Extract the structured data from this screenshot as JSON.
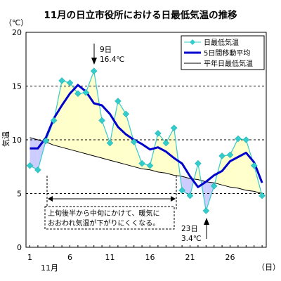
{
  "chart_data": {
    "type": "line",
    "title": "11月の日立市役所における日最低気温の推移",
    "unit_label": "（℃）",
    "ylabel": "気温",
    "x_unit": "（日）",
    "month_label": "11月",
    "xlim": [
      1,
      30
    ],
    "ylim": [
      0,
      20
    ],
    "x_ticks": [
      1,
      6,
      11,
      16,
      21,
      26
    ],
    "y_ticks": [
      0,
      5,
      10,
      15,
      20
    ],
    "legend_position": "top-right",
    "series": [
      {
        "name": "日最低気温",
        "color": "#33cccc",
        "values": [
          7.6,
          7.2,
          9.9,
          11.8,
          15.5,
          15.3,
          14.3,
          14.4,
          16.4,
          11.8,
          9.7,
          13.6,
          12.4,
          9.8,
          7.8,
          7.6,
          10.6,
          9.7,
          11.1,
          5.3,
          4.8,
          7.8,
          3.4,
          5.7,
          8.5,
          8.6,
          10.1,
          10.0,
          7.6,
          4.8
        ]
      },
      {
        "name": "5日間移動平均",
        "color": "#0000cc",
        "values": [
          9.2,
          9.2,
          10.2,
          12.0,
          13.2,
          14.3,
          15.1,
          14.5,
          13.4,
          13.2,
          12.4,
          11.2,
          10.5,
          10.0,
          9.6,
          9.1,
          9.3,
          8.9,
          8.3,
          7.8,
          6.6,
          5.6,
          6.1,
          6.7,
          7.1,
          8.0,
          8.4,
          8.8,
          7.9,
          6.0
        ]
      },
      {
        "name": "平年日最低気温",
        "color": "#000000",
        "values": [
          10.2,
          10.0,
          9.8,
          9.5,
          9.3,
          9.1,
          8.9,
          8.7,
          8.5,
          8.3,
          8.1,
          7.9,
          7.7,
          7.5,
          7.3,
          7.2,
          7.0,
          6.9,
          6.7,
          6.6,
          6.4,
          6.3,
          6.1,
          6.0,
          5.8,
          5.6,
          5.5,
          5.3,
          5.2,
          5.0
        ]
      }
    ],
    "annotations": {
      "max": {
        "day": "9日",
        "value": "16.4℃"
      },
      "min": {
        "day": "23日",
        "value": "3.4℃"
      },
      "note_line1": "上旬後半から中旬にかけて、暖気に",
      "note_line2": "おおわれ気温が下がりにくくなる。"
    }
  }
}
